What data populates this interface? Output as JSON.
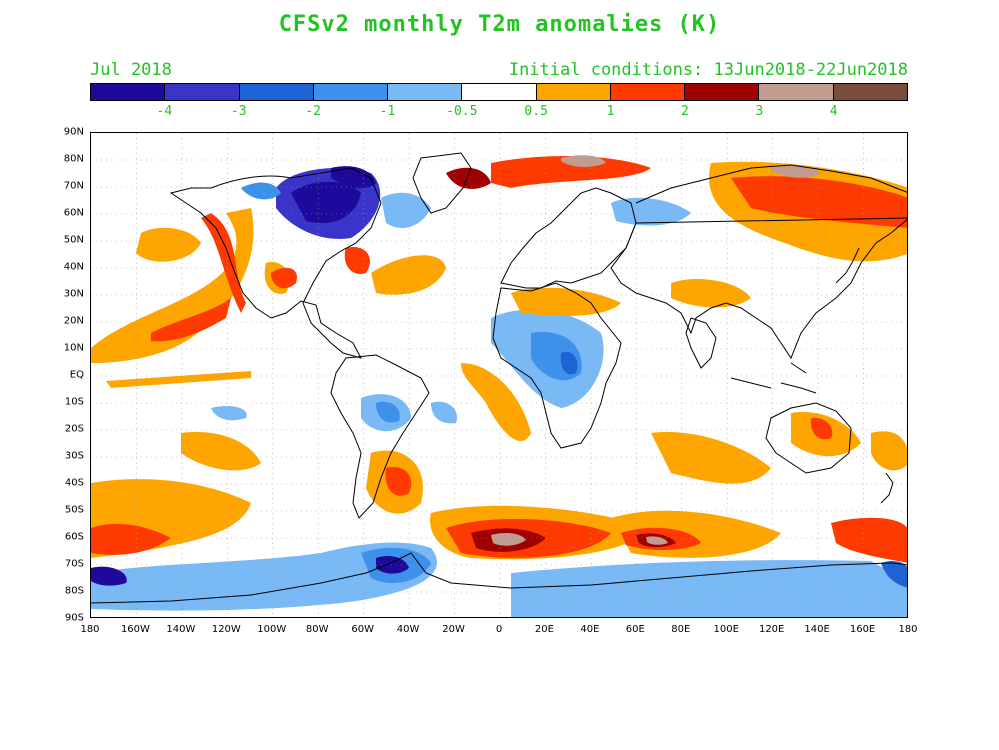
{
  "title": "CFSv2 monthly T2m anomalies (K)",
  "subtitle_left": "Jul 2018",
  "subtitle_right": "Initial conditions: 13Jun2018-22Jun2018",
  "colorbar": {
    "colors": [
      "#1d0a9c",
      "#3a35c9",
      "#1f62d3",
      "#3d91ea",
      "#78b9f6",
      "#ffffff",
      "#ffa500",
      "#ff3a00",
      "#a00000",
      "#c29b91",
      "#7a4c3e"
    ],
    "labels": [
      "-4",
      "-3",
      "-2",
      "-1",
      "-0.5",
      "0.5",
      "1",
      "2",
      "3",
      "4"
    ]
  },
  "lat_labels": [
    "90N",
    "80N",
    "70N",
    "60N",
    "50N",
    "40N",
    "30N",
    "20N",
    "10N",
    "EQ",
    "10S",
    "20S",
    "30S",
    "40S",
    "50S",
    "60S",
    "70S",
    "80S",
    "90S"
  ],
  "lon_labels": [
    "180",
    "160W",
    "140W",
    "120W",
    "100W",
    "80W",
    "60W",
    "40W",
    "20W",
    "0",
    "20E",
    "40E",
    "60E",
    "80E",
    "100E",
    "120E",
    "140E",
    "160E",
    "180"
  ],
  "region_labels": [],
  "anomaly_regions": [
    {
      "name": "NE Canada cold",
      "level": "-4",
      "lon": -65,
      "lat": 60
    },
    {
      "name": "Tropical Africa cool",
      "level": "-1",
      "lon": 25,
      "lat": 3
    },
    {
      "name": "South Atlantic warm",
      "level": "2",
      "lon": -35,
      "lat": -40
    },
    {
      "name": "Southern Ocean warm",
      "level": "4",
      "lon": 10,
      "lat": -62
    },
    {
      "name": "Antarctic cold",
      "level": "-4",
      "lon": -40,
      "lat": -72
    },
    {
      "name": "NE Pacific warm",
      "level": "2",
      "lon": -140,
      "lat": 20
    },
    {
      "name": "Siberia warm",
      "level": "2",
      "lon": 100,
      "lat": 68
    }
  ]
}
